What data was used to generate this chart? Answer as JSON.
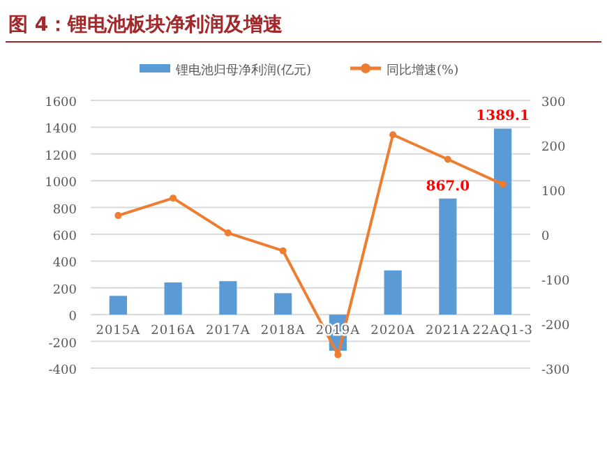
{
  "chart_data": {
    "type": "bar",
    "title": "图 4：锂电池板块净利润及增速",
    "categories": [
      "2015A",
      "2016A",
      "2017A",
      "2018A",
      "2019A",
      "2020A",
      "2021A",
      "22AQ1-3"
    ],
    "series": [
      {
        "name": "锂电池归母净利润(亿元)",
        "color": "#5b9bd5",
        "values": [
          140,
          240,
          250,
          160,
          -270,
          330,
          867.0,
          1389.1
        ],
        "value_labels": [
          null,
          null,
          null,
          null,
          null,
          null,
          "867.0",
          "1389.1"
        ]
      },
      {
        "name": "同比增速(%)",
        "type": "line",
        "axis": "y2",
        "color": "#ed7d31",
        "values": [
          42,
          81,
          3,
          -37,
          -270,
          223,
          168,
          112
        ]
      }
    ],
    "ylim": [
      -400,
      1600
    ],
    "yticks": [
      -400,
      -200,
      0,
      200,
      400,
      600,
      800,
      1000,
      1200,
      1400,
      1600
    ],
    "y2lim": [
      -300,
      300
    ],
    "y2ticks": [
      -300,
      -200,
      -100,
      0,
      100,
      200,
      300
    ],
    "grid": "y",
    "legend": "top",
    "marker": "circle"
  }
}
